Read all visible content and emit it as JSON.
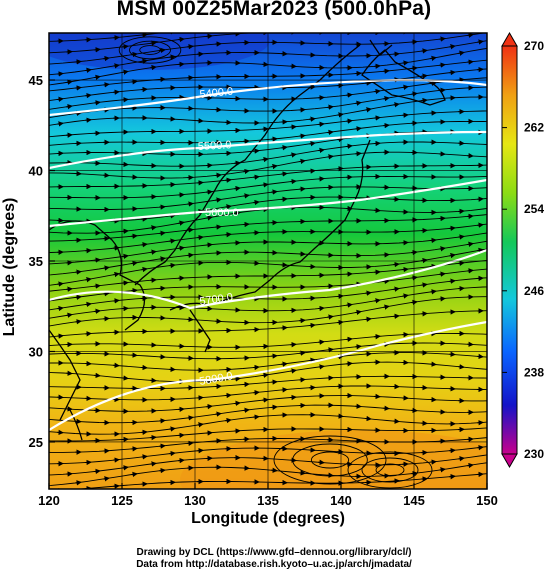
{
  "title": "MSM 00Z25Mar2023 (500.0hPa)",
  "xlabel": "Longitude (degrees)",
  "ylabel": "Latitude  (degrees)",
  "credits": [
    "Drawing by DCL (https://www.gfd–dennou.org/library/dcl/)",
    "Data from http://database.rish.kyoto–u.ac.jp/arch/jmadata/"
  ],
  "axes": {
    "lon_range": [
      120,
      150
    ],
    "lat_range": [
      22.4,
      47.6
    ],
    "lon_ticks": [
      "120",
      "125",
      "130",
      "135",
      "140",
      "145",
      "150"
    ],
    "lat_ticks": [
      "25",
      "30",
      "35",
      "40",
      "45"
    ]
  },
  "colorbar": {
    "range": [
      230,
      270
    ],
    "ticks": [
      "230",
      "238",
      "246",
      "254",
      "262",
      "270"
    ],
    "colors": [
      "#c8008c",
      "#1414c8",
      "#0a64ff",
      "#14c8dc",
      "#14c85a",
      "#8cdc14",
      "#e6e614",
      "#f0a014",
      "#f03214"
    ]
  },
  "contours": {
    "labels": [
      "5400.0",
      "5500.0",
      "5600.0",
      "5700.0",
      "5800.0"
    ]
  }
}
